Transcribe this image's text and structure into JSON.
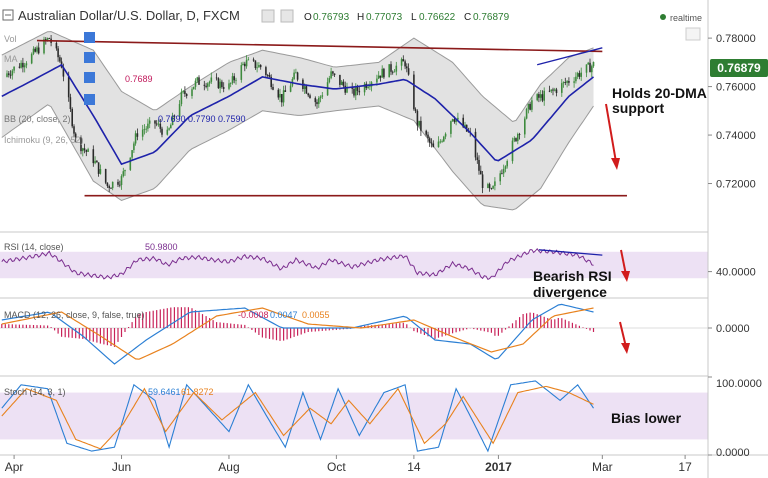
{
  "header": {
    "title": "Australian Dollar/U.S. Dollar, D, FXCM",
    "ohlc": [
      {
        "k": "O",
        "v": "0.76793"
      },
      {
        "k": "H",
        "v": "0.77073"
      },
      {
        "k": "L",
        "v": "0.76622"
      },
      {
        "k": "C",
        "v": "0.76879"
      }
    ],
    "realtime_label": "realtime"
  },
  "indicators": {
    "vol": "Vol",
    "ma": "MA",
    "ma_value": "0.7689",
    "bb": "BB (20, close, 2)",
    "bb_values": [
      "0.7690",
      "0.7790",
      "0.7590"
    ],
    "ichimoku": "Ichimoku (9, 26, 52)",
    "rsi": "RSI (14, close)",
    "rsi_value": "50.9800",
    "macd": "MACD (12, 26, close, 9, false, true)",
    "macd_values": [
      "-0.0008",
      "0.0047",
      "0.0055"
    ],
    "stoch": "Stoch (14, 3, 1)",
    "stoch_values": [
      "59.6461",
      "61.8272"
    ]
  },
  "annotations": {
    "holds_line1": "Holds 20-DMA",
    "holds_line2": "support",
    "rsi_div_line1": "Bearish RSI",
    "rsi_div_line2": "divergence",
    "bias": "Bias lower"
  },
  "colors": {
    "candle_up": "#3d8a3d",
    "candle_down": "#2a2a2a",
    "ma": "#1e22aa",
    "bb_fill": "#d8d8d8",
    "bb_line": "#9a9a9a",
    "trend": "#8b1a1a",
    "annot_arrow": "#d11c1c",
    "rsi": "#7b2f8f",
    "macd": "#2b7fd4",
    "signal": "#e8821e",
    "hist": "#c8235a",
    "stoch_k": "#2b7fd4",
    "stoch_d": "#e8821e",
    "band_fill": "#e6d4ef",
    "price_badge": "#2e7d32"
  },
  "chart_data": {
    "type": "candlestick",
    "x": {
      "labels": [
        "Apr",
        "Jun",
        "Aug",
        "Oct",
        "14",
        "2017",
        "Mar",
        "17"
      ],
      "label_dates": [
        "2016-04-01",
        "2016-06-01",
        "2016-08-01",
        "2016-10-01",
        "2016-11-14",
        "2017-01-01",
        "2017-03-01",
        "2017-04-17"
      ]
    },
    "price": {
      "ylim": [
        0.7,
        0.785
      ],
      "ticks": [
        "0.78000",
        "0.76000",
        "0.74000",
        "0.72000"
      ],
      "last_price": "0.76879",
      "close_path": [
        [
          "2016-03-25",
          0.764
        ],
        [
          "2016-04-10",
          0.772
        ],
        [
          "2016-04-21",
          0.78
        ],
        [
          "2016-04-28",
          0.769
        ],
        [
          "2016-05-06",
          0.738
        ],
        [
          "2016-05-16",
          0.73
        ],
        [
          "2016-05-24",
          0.719
        ],
        [
          "2016-06-01",
          0.722
        ],
        [
          "2016-06-10",
          0.741
        ],
        [
          "2016-06-20",
          0.745
        ],
        [
          "2016-06-27",
          0.74
        ],
        [
          "2016-07-05",
          0.756
        ],
        [
          "2016-07-14",
          0.762
        ],
        [
          "2016-07-22",
          0.762
        ],
        [
          "2016-08-01",
          0.76
        ],
        [
          "2016-08-10",
          0.77
        ],
        [
          "2016-08-20",
          0.768
        ],
        [
          "2016-08-31",
          0.755
        ],
        [
          "2016-09-08",
          0.765
        ],
        [
          "2016-09-20",
          0.753
        ],
        [
          "2016-09-28",
          0.765
        ],
        [
          "2016-10-10",
          0.757
        ],
        [
          "2016-10-25",
          0.765
        ],
        [
          "2016-11-09",
          0.77
        ],
        [
          "2016-11-16",
          0.745
        ],
        [
          "2016-11-26",
          0.733
        ],
        [
          "2016-12-06",
          0.748
        ],
        [
          "2016-12-16",
          0.74
        ],
        [
          "2016-12-23",
          0.72
        ],
        [
          "2016-12-28",
          0.716
        ],
        [
          "2017-01-06",
          0.731
        ],
        [
          "2017-01-20",
          0.754
        ],
        [
          "2017-02-01",
          0.758
        ],
        [
          "2017-02-15",
          0.765
        ],
        [
          "2017-02-24",
          0.769
        ]
      ],
      "ma20": [
        [
          "2016-03-25",
          0.756
        ],
        [
          "2016-04-10",
          0.762
        ],
        [
          "2016-04-28",
          0.769
        ],
        [
          "2016-05-16",
          0.748
        ],
        [
          "2016-06-01",
          0.728
        ],
        [
          "2016-06-20",
          0.733
        ],
        [
          "2016-07-10",
          0.748
        ],
        [
          "2016-08-01",
          0.756
        ],
        [
          "2016-08-20",
          0.764
        ],
        [
          "2016-09-10",
          0.761
        ],
        [
          "2016-09-30",
          0.759
        ],
        [
          "2016-10-25",
          0.761
        ],
        [
          "2016-11-09",
          0.763
        ],
        [
          "2016-11-26",
          0.755
        ],
        [
          "2016-12-16",
          0.741
        ],
        [
          "2016-12-31",
          0.729
        ],
        [
          "2017-01-20",
          0.738
        ],
        [
          "2017-02-10",
          0.756
        ],
        [
          "2017-02-24",
          0.764
        ]
      ],
      "bb_upper": [
        [
          "2016-03-25",
          0.773
        ],
        [
          "2016-04-21",
          0.783
        ],
        [
          "2016-05-16",
          0.775
        ],
        [
          "2016-06-01",
          0.758
        ],
        [
          "2016-06-20",
          0.75
        ],
        [
          "2016-07-10",
          0.76
        ],
        [
          "2016-08-01",
          0.77
        ],
        [
          "2016-08-20",
          0.775
        ],
        [
          "2016-09-10",
          0.772
        ],
        [
          "2016-09-30",
          0.768
        ],
        [
          "2016-10-25",
          0.77
        ],
        [
          "2016-11-14",
          0.78
        ],
        [
          "2016-12-06",
          0.77
        ],
        [
          "2016-12-23",
          0.756
        ],
        [
          "2017-01-10",
          0.745
        ],
        [
          "2017-01-25",
          0.761
        ],
        [
          "2017-02-10",
          0.772
        ],
        [
          "2017-02-24",
          0.776
        ]
      ],
      "bb_lower": [
        [
          "2016-03-25",
          0.739
        ],
        [
          "2016-04-21",
          0.753
        ],
        [
          "2016-05-16",
          0.721
        ],
        [
          "2016-06-01",
          0.713
        ],
        [
          "2016-06-20",
          0.718
        ],
        [
          "2016-07-10",
          0.734
        ],
        [
          "2016-08-01",
          0.742
        ],
        [
          "2016-08-20",
          0.75
        ],
        [
          "2016-09-10",
          0.748
        ],
        [
          "2016-09-30",
          0.75
        ],
        [
          "2016-10-25",
          0.752
        ],
        [
          "2016-11-14",
          0.746
        ],
        [
          "2016-12-06",
          0.725
        ],
        [
          "2016-12-23",
          0.711
        ],
        [
          "2017-01-10",
          0.709
        ],
        [
          "2017-01-25",
          0.718
        ],
        [
          "2017-02-10",
          0.737
        ],
        [
          "2017-02-24",
          0.752
        ]
      ],
      "trendlines": [
        {
          "from": [
            "2016-04-14",
            0.779
          ],
          "to": [
            "2017-03-01",
            0.7745
          ]
        },
        {
          "from": [
            "2016-05-11",
            0.715
          ],
          "to": [
            "2017-03-15",
            0.715
          ]
        },
        {
          "from": [
            "2017-01-23",
            0.769
          ],
          "to": [
            "2017-03-01",
            0.776
          ]
        }
      ]
    },
    "rsi": {
      "ylim": [
        0,
        100
      ],
      "ticks": [
        "40.0000"
      ],
      "band": [
        30,
        70
      ],
      "path": [
        [
          "2016-03-25",
          55
        ],
        [
          "2016-04-10",
          62
        ],
        [
          "2016-04-21",
          68
        ],
        [
          "2016-04-28",
          55
        ],
        [
          "2016-05-06",
          38
        ],
        [
          "2016-05-16",
          34
        ],
        [
          "2016-05-24",
          31
        ],
        [
          "2016-06-01",
          36
        ],
        [
          "2016-06-10",
          58
        ],
        [
          "2016-06-20",
          60
        ],
        [
          "2016-06-27",
          50
        ],
        [
          "2016-07-05",
          60
        ],
        [
          "2016-07-14",
          62
        ],
        [
          "2016-07-22",
          58
        ],
        [
          "2016-08-01",
          55
        ],
        [
          "2016-08-10",
          63
        ],
        [
          "2016-08-20",
          60
        ],
        [
          "2016-08-31",
          44
        ],
        [
          "2016-09-08",
          58
        ],
        [
          "2016-09-20",
          45
        ],
        [
          "2016-09-28",
          58
        ],
        [
          "2016-10-10",
          47
        ],
        [
          "2016-10-25",
          58
        ],
        [
          "2016-11-09",
          64
        ],
        [
          "2016-11-16",
          38
        ],
        [
          "2016-11-26",
          35
        ],
        [
          "2016-12-06",
          52
        ],
        [
          "2016-12-16",
          44
        ],
        [
          "2016-12-23",
          32
        ],
        [
          "2016-12-28",
          30
        ],
        [
          "2017-01-06",
          55
        ],
        [
          "2017-01-20",
          72
        ],
        [
          "2017-02-01",
          70
        ],
        [
          "2017-02-15",
          65
        ],
        [
          "2017-02-24",
          51
        ]
      ],
      "divergence_line": {
        "from": [
          "2017-01-24",
          73
        ],
        "to": [
          "2017-03-01",
          65
        ]
      }
    },
    "macd": {
      "ylim": [
        -0.012,
        0.007
      ],
      "ticks": [
        "0.0000"
      ],
      "macd_path": [
        [
          "2016-03-25",
          0.002
        ],
        [
          "2016-04-21",
          0.004
        ],
        [
          "2016-05-10",
          -0.002
        ],
        [
          "2016-05-28",
          -0.009
        ],
        [
          "2016-06-15",
          -0.003
        ],
        [
          "2016-07-10",
          0.004
        ],
        [
          "2016-08-10",
          0.005
        ],
        [
          "2016-08-31",
          0.0
        ],
        [
          "2016-09-20",
          0.0
        ],
        [
          "2016-10-10",
          0.0
        ],
        [
          "2016-11-09",
          0.003
        ],
        [
          "2016-11-26",
          -0.003
        ],
        [
          "2016-12-16",
          -0.004
        ],
        [
          "2016-12-31",
          -0.008
        ],
        [
          "2017-01-20",
          0.002
        ],
        [
          "2017-02-05",
          0.006
        ],
        [
          "2017-02-24",
          0.004
        ]
      ],
      "signal_path": [
        [
          "2016-03-25",
          0.001
        ],
        [
          "2016-04-28",
          0.004
        ],
        [
          "2016-05-20",
          -0.002
        ],
        [
          "2016-06-10",
          -0.008
        ],
        [
          "2016-06-30",
          -0.004
        ],
        [
          "2016-07-25",
          0.003
        ],
        [
          "2016-08-20",
          0.005
        ],
        [
          "2016-09-15",
          0.001
        ],
        [
          "2016-10-15",
          0.0
        ],
        [
          "2016-11-14",
          0.002
        ],
        [
          "2016-12-05",
          -0.002
        ],
        [
          "2016-12-28",
          -0.006
        ],
        [
          "2017-01-15",
          -0.004
        ],
        [
          "2017-02-01",
          0.003
        ],
        [
          "2017-02-24",
          0.005
        ]
      ]
    },
    "stoch": {
      "ylim": [
        0,
        100
      ],
      "ticks": [
        "100.0000",
        "0.0000"
      ],
      "band": [
        20,
        80
      ],
      "k_path": [
        [
          "2016-03-25",
          60
        ],
        [
          "2016-04-05",
          90
        ],
        [
          "2016-04-20",
          85
        ],
        [
          "2016-05-01",
          15
        ],
        [
          "2016-05-15",
          5
        ],
        [
          "2016-05-28",
          10
        ],
        [
          "2016-06-08",
          90
        ],
        [
          "2016-06-20",
          70
        ],
        [
          "2016-06-28",
          10
        ],
        [
          "2016-07-08",
          90
        ],
        [
          "2016-07-20",
          60
        ],
        [
          "2016-08-01",
          30
        ],
        [
          "2016-08-12",
          90
        ],
        [
          "2016-08-25",
          40
        ],
        [
          "2016-09-02",
          10
        ],
        [
          "2016-09-12",
          80
        ],
        [
          "2016-09-22",
          20
        ],
        [
          "2016-10-02",
          85
        ],
        [
          "2016-10-14",
          25
        ],
        [
          "2016-10-28",
          80
        ],
        [
          "2016-11-09",
          90
        ],
        [
          "2016-11-16",
          5
        ],
        [
          "2016-11-28",
          10
        ],
        [
          "2016-12-08",
          85
        ],
        [
          "2016-12-16",
          50
        ],
        [
          "2016-12-26",
          5
        ],
        [
          "2017-01-08",
          90
        ],
        [
          "2017-01-22",
          95
        ],
        [
          "2017-02-05",
          70
        ],
        [
          "2017-02-15",
          90
        ],
        [
          "2017-02-24",
          60
        ]
      ],
      "d_path": [
        [
          "2016-03-25",
          50
        ],
        [
          "2016-04-08",
          85
        ],
        [
          "2016-04-25",
          70
        ],
        [
          "2016-05-06",
          20
        ],
        [
          "2016-05-20",
          8
        ],
        [
          "2016-06-02",
          40
        ],
        [
          "2016-06-14",
          85
        ],
        [
          "2016-06-26",
          30
        ],
        [
          "2016-07-12",
          80
        ],
        [
          "2016-07-28",
          45
        ],
        [
          "2016-08-16",
          80
        ],
        [
          "2016-09-01",
          25
        ],
        [
          "2016-09-16",
          60
        ],
        [
          "2016-09-28",
          40
        ],
        [
          "2016-10-08",
          70
        ],
        [
          "2016-10-20",
          40
        ],
        [
          "2016-11-05",
          85
        ],
        [
          "2016-11-20",
          15
        ],
        [
          "2016-12-02",
          40
        ],
        [
          "2016-12-12",
          75
        ],
        [
          "2016-12-29",
          15
        ],
        [
          "2017-01-12",
          80
        ],
        [
          "2017-01-28",
          88
        ],
        [
          "2017-02-10",
          80
        ],
        [
          "2017-02-24",
          65
        ]
      ]
    }
  }
}
